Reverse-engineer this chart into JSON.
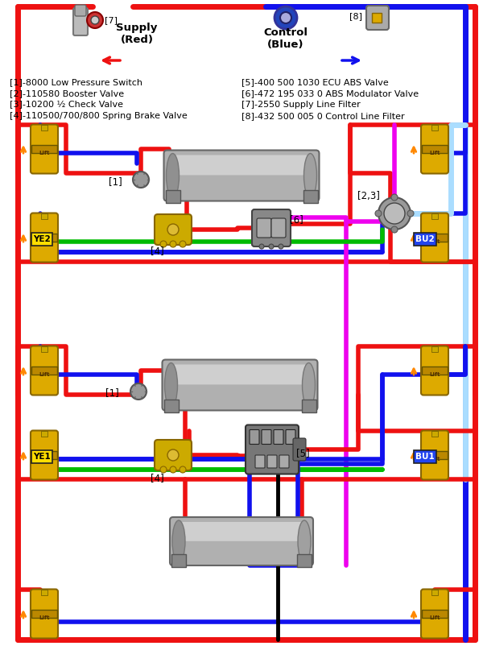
{
  "bg_color": "#ffffff",
  "colors": {
    "red": "#ee1111",
    "blue": "#1111ee",
    "green": "#00bb00",
    "magenta": "#ee00ee",
    "light_blue": "#aaddff",
    "black": "#000000",
    "gold": "#ddaa00",
    "gray_tank": "#c0c0c0",
    "dark_gray": "#888888",
    "white": "#ffffff",
    "orange": "#ff8800"
  },
  "legend_left": [
    "[1]-8000 Low Pressure Switch",
    "[2]-110580 Booster Valve",
    "[3]-10200 ½ Check Valve",
    "[4]-110500/700/800 Spring Brake Valve"
  ],
  "legend_right": [
    "[5]-400 500 1030 ECU ABS Valve",
    "[6]-472 195 033 0 ABS Modulator Valve",
    "[7]-2550 Supply Line Filter",
    "[8]-432 500 005 0 Control Line Filter"
  ],
  "lw": 4,
  "lw_thin": 2.5
}
